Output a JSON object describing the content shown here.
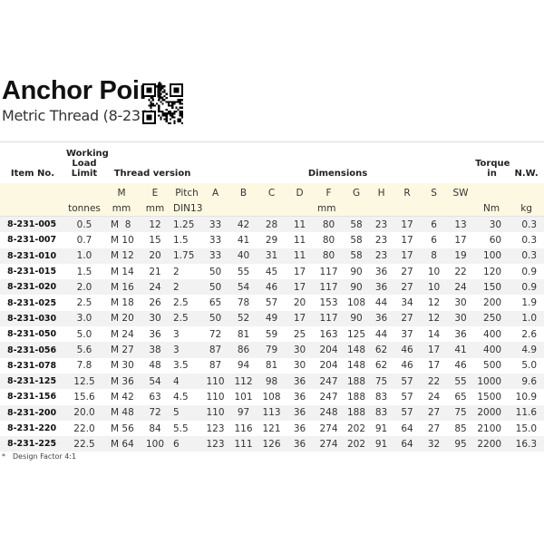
{
  "header": {
    "title": "Anchor Point",
    "subtitle": "Metric Thread (8-231)",
    "qr_code": "qr-code"
  },
  "table": {
    "group_headers": {
      "item": "Item No.",
      "wll_line1": "Working",
      "wll_line2": "Load Limit",
      "thread": "Thread version",
      "dimensions": "Dimensions",
      "torque_line1": "Torque",
      "torque_line2": "in",
      "nw": "N.W."
    },
    "sub_headers": [
      "",
      "",
      "M",
      "E",
      "Pitch",
      "A",
      "B",
      "C",
      "D",
      "F",
      "G",
      "H",
      "R",
      "S",
      "SW",
      "",
      ""
    ],
    "units": {
      "wll": "tonnes",
      "m": "mm",
      "e": "mm",
      "pitch": "DIN13",
      "dims": "mm",
      "torque": "Nm",
      "nw": "kg"
    },
    "rows": [
      [
        "8-231-005",
        "0.5",
        "M  8",
        "12",
        "1.25",
        "33",
        "42",
        "28",
        "11",
        "80",
        "58",
        "23",
        "17",
        "6",
        "13",
        "30",
        "0.3"
      ],
      [
        "8-231-007",
        "0.7",
        "M 10",
        "15",
        "1.5",
        "33",
        "41",
        "29",
        "11",
        "80",
        "58",
        "23",
        "17",
        "6",
        "17",
        "60",
        "0.3"
      ],
      [
        "8-231-010",
        "1.0",
        "M 12",
        "20",
        "1.75",
        "33",
        "40",
        "31",
        "11",
        "80",
        "58",
        "23",
        "17",
        "8",
        "19",
        "100",
        "0.3"
      ],
      [
        "8-231-015",
        "1.5",
        "M 14",
        "21",
        "2",
        "50",
        "55",
        "45",
        "17",
        "117",
        "90",
        "36",
        "27",
        "10",
        "22",
        "120",
        "0.9"
      ],
      [
        "8-231-020",
        "2.0",
        "M 16",
        "24",
        "2",
        "50",
        "54",
        "46",
        "17",
        "117",
        "90",
        "36",
        "27",
        "10",
        "24",
        "150",
        "0.9"
      ],
      [
        "8-231-025",
        "2.5",
        "M 18",
        "26",
        "2.5",
        "65",
        "78",
        "57",
        "20",
        "153",
        "108",
        "44",
        "34",
        "12",
        "30",
        "200",
        "1.9"
      ],
      [
        "8-231-030",
        "3.0",
        "M 20",
        "30",
        "2.5",
        "50",
        "52",
        "49",
        "17",
        "117",
        "90",
        "36",
        "27",
        "12",
        "30",
        "250",
        "1.0"
      ],
      [
        "8-231-050",
        "5.0",
        "M 24",
        "36",
        "3",
        "72",
        "81",
        "59",
        "25",
        "163",
        "125",
        "44",
        "37",
        "14",
        "36",
        "400",
        "2.6"
      ],
      [
        "8-231-056",
        "5.6",
        "M 27",
        "38",
        "3",
        "87",
        "86",
        "79",
        "30",
        "204",
        "148",
        "62",
        "46",
        "17",
        "41",
        "400",
        "4.9"
      ],
      [
        "8-231-078",
        "7.8",
        "M 30",
        "48",
        "3.5",
        "87",
        "94",
        "81",
        "30",
        "204",
        "148",
        "62",
        "46",
        "17",
        "46",
        "500",
        "5.0"
      ],
      [
        "8-231-125",
        "12.5",
        "M 36",
        "54",
        "4",
        "110",
        "112",
        "98",
        "36",
        "247",
        "188",
        "75",
        "57",
        "22",
        "55",
        "1000",
        "9.6"
      ],
      [
        "8-231-156",
        "15.6",
        "M 42",
        "63",
        "4.5",
        "110",
        "101",
        "108",
        "36",
        "247",
        "188",
        "83",
        "57",
        "24",
        "65",
        "1500",
        "10.9"
      ],
      [
        "8-231-200",
        "20.0",
        "M 48",
        "72",
        "5",
        "110",
        "97",
        "113",
        "36",
        "248",
        "188",
        "83",
        "57",
        "27",
        "75",
        "2000",
        "11.6"
      ],
      [
        "8-231-220",
        "22.0",
        "M 56",
        "84",
        "5.5",
        "123",
        "116",
        "121",
        "36",
        "274",
        "202",
        "91",
        "64",
        "27",
        "85",
        "2100",
        "15.0"
      ],
      [
        "8-231-225",
        "22.5",
        "M 64",
        "100",
        "6",
        "123",
        "111",
        "126",
        "36",
        "274",
        "202",
        "91",
        "64",
        "32",
        "95",
        "2200",
        "16.3"
      ]
    ]
  },
  "footnote": {
    "marker": "*",
    "text": "Design Factor 4:1"
  }
}
